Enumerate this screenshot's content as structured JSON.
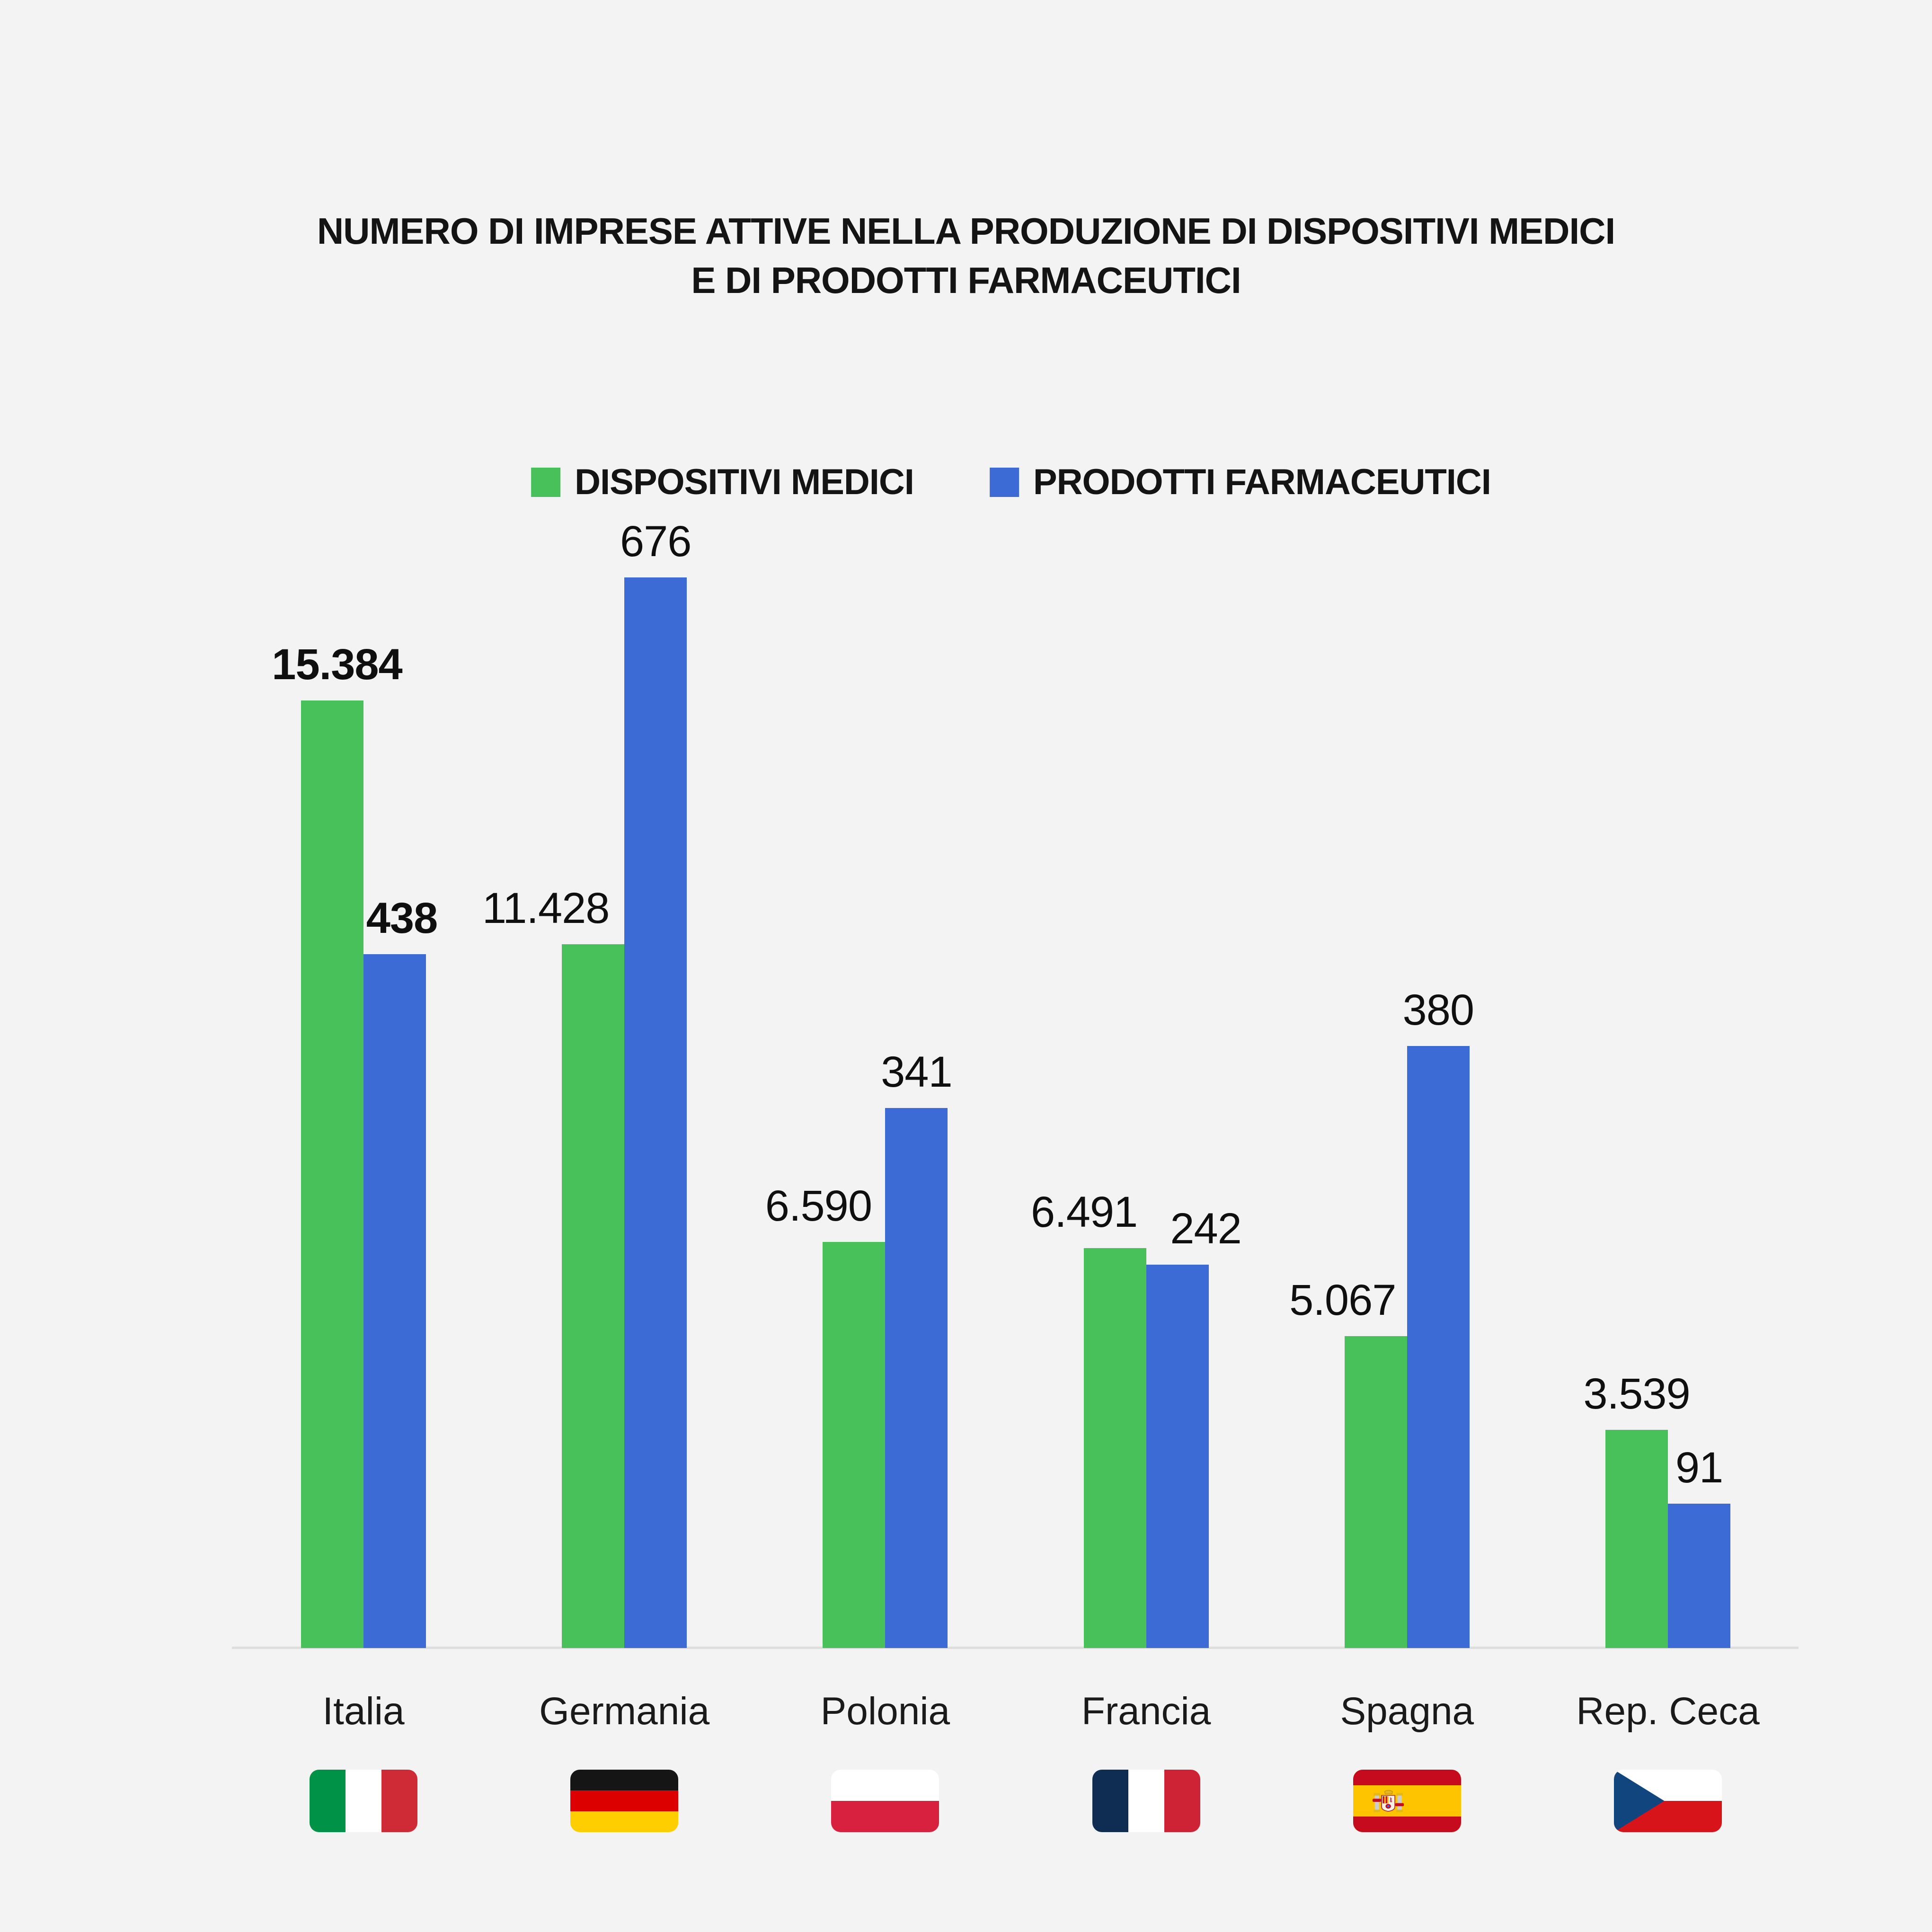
{
  "title": {
    "line1": "NUMERO DI IMPRESE ATTIVE NELLA PRODUZIONE DI DISPOSITIVI MEDICI",
    "line2": "E DI PRODOTTI FARMACEUTICI"
  },
  "legend": {
    "items": [
      {
        "label": "DISPOSITIVI MEDICI",
        "color": "#49c15a"
      },
      {
        "label": "PRODOTTI FARMACEUTICI",
        "color": "#3d6bd6"
      }
    ]
  },
  "chart_data": {
    "type": "bar",
    "title": "NUMERO DI IMPRESE ATTIVE NELLA PRODUZIONE DI DISPOSITIVI MEDICI E DI PRODOTTI FARMACEUTICI",
    "categories": [
      "Italia",
      "Germania",
      "Polonia",
      "Francia",
      "Spagna",
      "Rep. Ceca"
    ],
    "series": [
      {
        "name": "DISPOSITIVI MEDICI",
        "color": "#49c15a",
        "values": [
          15384,
          11428,
          6590,
          6491,
          5067,
          3539
        ],
        "labels": [
          "15.384",
          "11.428",
          "6.590",
          "6.491",
          "5.067",
          "3.539"
        ]
      },
      {
        "name": "PRODOTTI FARMACEUTICI",
        "color": "#3d6bd6",
        "values": [
          438,
          676,
          341,
          242,
          380,
          91
        ],
        "labels": [
          "438",
          "676",
          "341",
          "242",
          "380",
          "91"
        ]
      }
    ],
    "xlabel": "",
    "ylabel": "",
    "grid": false,
    "legend_position": "top-center",
    "independent_series_scaling": true,
    "highlighted_category": "Italia",
    "flags": [
      {
        "category": "Italia",
        "icon": "flag-italy"
      },
      {
        "category": "Germania",
        "icon": "flag-germany"
      },
      {
        "category": "Polonia",
        "icon": "flag-poland"
      },
      {
        "category": "Francia",
        "icon": "flag-france"
      },
      {
        "category": "Spagna",
        "icon": "flag-spain"
      },
      {
        "category": "Rep. Ceca",
        "icon": "flag-czech-republic"
      }
    ],
    "colors": {
      "background": "#f2f3f2",
      "baseline": "#dededd",
      "text": "#141414"
    }
  }
}
